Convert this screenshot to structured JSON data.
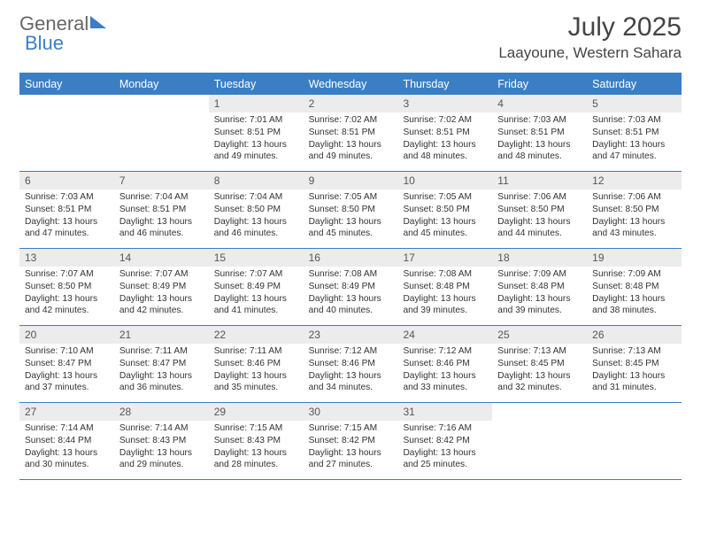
{
  "brand": {
    "part1": "General",
    "part2": "Blue"
  },
  "title": "July 2025",
  "location": "Laayoune, Western Sahara",
  "colors": {
    "accent": "#3a7fc4",
    "daynum_bg": "#ececec",
    "text": "#333333",
    "bg": "#ffffff"
  },
  "weekdays": [
    "Sunday",
    "Monday",
    "Tuesday",
    "Wednesday",
    "Thursday",
    "Friday",
    "Saturday"
  ],
  "labels": {
    "sunrise": "Sunrise: ",
    "sunset": "Sunset: ",
    "daylight": "Daylight: "
  },
  "weeks": [
    [
      {
        "n": "",
        "empty": true
      },
      {
        "n": "",
        "empty": true
      },
      {
        "n": "1",
        "sr": "7:01 AM",
        "ss": "8:51 PM",
        "dl": "13 hours and 49 minutes."
      },
      {
        "n": "2",
        "sr": "7:02 AM",
        "ss": "8:51 PM",
        "dl": "13 hours and 49 minutes."
      },
      {
        "n": "3",
        "sr": "7:02 AM",
        "ss": "8:51 PM",
        "dl": "13 hours and 48 minutes."
      },
      {
        "n": "4",
        "sr": "7:03 AM",
        "ss": "8:51 PM",
        "dl": "13 hours and 48 minutes."
      },
      {
        "n": "5",
        "sr": "7:03 AM",
        "ss": "8:51 PM",
        "dl": "13 hours and 47 minutes."
      }
    ],
    [
      {
        "n": "6",
        "sr": "7:03 AM",
        "ss": "8:51 PM",
        "dl": "13 hours and 47 minutes."
      },
      {
        "n": "7",
        "sr": "7:04 AM",
        "ss": "8:51 PM",
        "dl": "13 hours and 46 minutes."
      },
      {
        "n": "8",
        "sr": "7:04 AM",
        "ss": "8:50 PM",
        "dl": "13 hours and 46 minutes."
      },
      {
        "n": "9",
        "sr": "7:05 AM",
        "ss": "8:50 PM",
        "dl": "13 hours and 45 minutes."
      },
      {
        "n": "10",
        "sr": "7:05 AM",
        "ss": "8:50 PM",
        "dl": "13 hours and 45 minutes."
      },
      {
        "n": "11",
        "sr": "7:06 AM",
        "ss": "8:50 PM",
        "dl": "13 hours and 44 minutes."
      },
      {
        "n": "12",
        "sr": "7:06 AM",
        "ss": "8:50 PM",
        "dl": "13 hours and 43 minutes."
      }
    ],
    [
      {
        "n": "13",
        "sr": "7:07 AM",
        "ss": "8:50 PM",
        "dl": "13 hours and 42 minutes."
      },
      {
        "n": "14",
        "sr": "7:07 AM",
        "ss": "8:49 PM",
        "dl": "13 hours and 42 minutes."
      },
      {
        "n": "15",
        "sr": "7:07 AM",
        "ss": "8:49 PM",
        "dl": "13 hours and 41 minutes."
      },
      {
        "n": "16",
        "sr": "7:08 AM",
        "ss": "8:49 PM",
        "dl": "13 hours and 40 minutes."
      },
      {
        "n": "17",
        "sr": "7:08 AM",
        "ss": "8:48 PM",
        "dl": "13 hours and 39 minutes."
      },
      {
        "n": "18",
        "sr": "7:09 AM",
        "ss": "8:48 PM",
        "dl": "13 hours and 39 minutes."
      },
      {
        "n": "19",
        "sr": "7:09 AM",
        "ss": "8:48 PM",
        "dl": "13 hours and 38 minutes."
      }
    ],
    [
      {
        "n": "20",
        "sr": "7:10 AM",
        "ss": "8:47 PM",
        "dl": "13 hours and 37 minutes."
      },
      {
        "n": "21",
        "sr": "7:11 AM",
        "ss": "8:47 PM",
        "dl": "13 hours and 36 minutes."
      },
      {
        "n": "22",
        "sr": "7:11 AM",
        "ss": "8:46 PM",
        "dl": "13 hours and 35 minutes."
      },
      {
        "n": "23",
        "sr": "7:12 AM",
        "ss": "8:46 PM",
        "dl": "13 hours and 34 minutes."
      },
      {
        "n": "24",
        "sr": "7:12 AM",
        "ss": "8:46 PM",
        "dl": "13 hours and 33 minutes."
      },
      {
        "n": "25",
        "sr": "7:13 AM",
        "ss": "8:45 PM",
        "dl": "13 hours and 32 minutes."
      },
      {
        "n": "26",
        "sr": "7:13 AM",
        "ss": "8:45 PM",
        "dl": "13 hours and 31 minutes."
      }
    ],
    [
      {
        "n": "27",
        "sr": "7:14 AM",
        "ss": "8:44 PM",
        "dl": "13 hours and 30 minutes."
      },
      {
        "n": "28",
        "sr": "7:14 AM",
        "ss": "8:43 PM",
        "dl": "13 hours and 29 minutes."
      },
      {
        "n": "29",
        "sr": "7:15 AM",
        "ss": "8:43 PM",
        "dl": "13 hours and 28 minutes."
      },
      {
        "n": "30",
        "sr": "7:15 AM",
        "ss": "8:42 PM",
        "dl": "13 hours and 27 minutes."
      },
      {
        "n": "31",
        "sr": "7:16 AM",
        "ss": "8:42 PM",
        "dl": "13 hours and 25 minutes."
      },
      {
        "n": "",
        "empty": true
      },
      {
        "n": "",
        "empty": true
      }
    ]
  ]
}
